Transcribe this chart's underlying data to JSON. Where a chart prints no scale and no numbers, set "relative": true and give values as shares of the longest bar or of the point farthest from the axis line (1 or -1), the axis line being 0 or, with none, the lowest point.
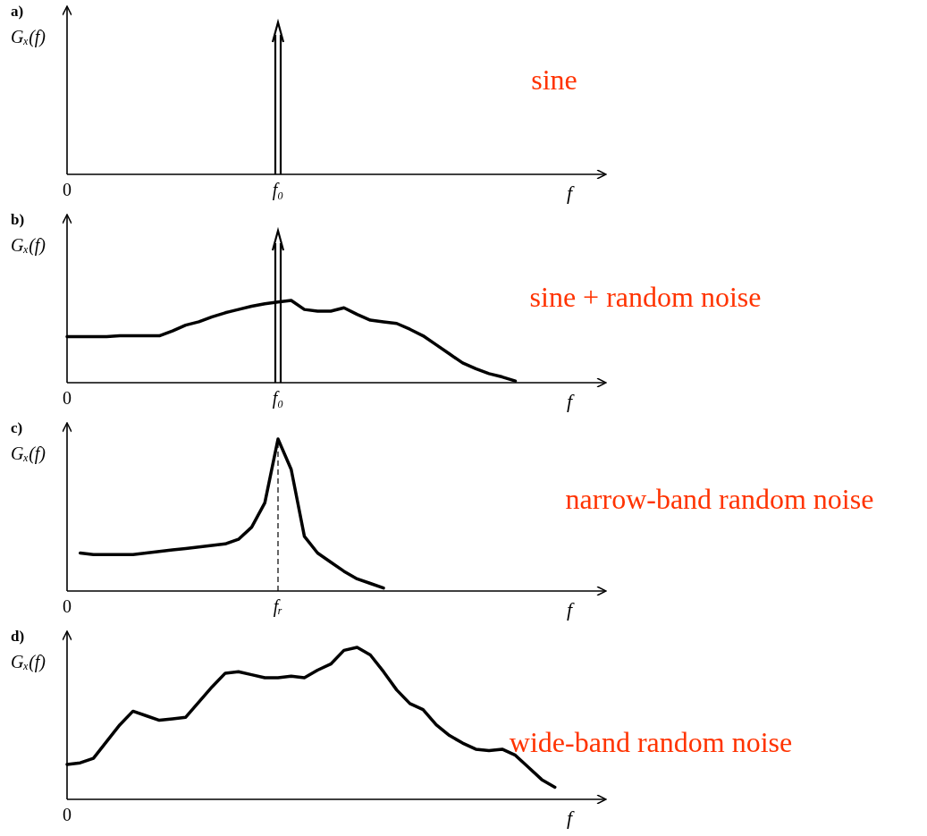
{
  "chart_data": [
    {
      "type": "other",
      "title": "a)",
      "ylabel": "Gₓ(f)",
      "xlabel": "f",
      "annotations": [
        "0",
        "f₀",
        "sine"
      ]
    },
    {
      "type": "line",
      "title": "b)",
      "ylabel": "Gₓ(f)",
      "xlabel": "f",
      "relative": true,
      "annotations": [
        "0",
        "f₀",
        "sine + random noise"
      ],
      "categories": [
        null,
        null,
        null,
        null,
        null,
        null,
        null,
        null,
        null,
        null,
        null,
        null,
        null,
        null,
        null,
        null,
        null,
        null,
        null,
        null,
        null,
        null,
        null,
        null,
        null,
        null,
        null,
        null,
        null,
        null,
        null,
        null,
        null,
        null,
        null,
        null,
        null,
        null,
        null,
        null,
        null
      ],
      "series": [
        {
          "color": "#000000",
          "values": [
            0.56,
            0.56,
            0.56,
            0.56,
            0.57,
            0.57,
            0.57,
            0.57,
            0.63,
            0.7,
            0.74,
            0.8,
            0.85,
            0.89,
            0.93,
            0.96,
            0.98,
            1,
            0.89,
            0.87,
            0.87,
            0.91,
            0.83,
            0.76,
            0.74,
            0.72,
            0.65,
            0.57,
            0.46,
            0.35,
            0.24,
            0.17,
            0.11,
            0.07,
            0.02,
            null,
            null,
            null,
            null,
            null,
            null
          ]
        }
      ]
    },
    {
      "type": "line",
      "title": "c)",
      "ylabel": "Gₓ(f)",
      "xlabel": "f",
      "relative": true,
      "annotations": [
        "0",
        "fᵣ",
        "narrow-band random noise"
      ],
      "categories": [
        null,
        null,
        null,
        null,
        null,
        null,
        null,
        null,
        null,
        null,
        null,
        null,
        null,
        null,
        null,
        null,
        null,
        null,
        null,
        null,
        null,
        null,
        null,
        null,
        null,
        null,
        null,
        null,
        null,
        null,
        null,
        null,
        null,
        null,
        null,
        null,
        null,
        null,
        null,
        null,
        null
      ],
      "series": [
        {
          "color": "#000000",
          "values": [
            null,
            0.25,
            0.24,
            0.24,
            0.24,
            0.24,
            0.25,
            0.26,
            0.27,
            0.28,
            0.29,
            0.3,
            0.31,
            0.34,
            0.42,
            0.58,
            1,
            0.8,
            0.36,
            0.25,
            0.19,
            0.13,
            0.08,
            0.05,
            0.02,
            null,
            null,
            null,
            null,
            null,
            null,
            null,
            null,
            null,
            null,
            null,
            null,
            null,
            null,
            null,
            null
          ]
        }
      ]
    },
    {
      "type": "line",
      "title": "d)",
      "ylabel": "Gₓ(f)",
      "xlabel": "f",
      "relative": true,
      "annotations": [
        "0",
        "wide-band random noise"
      ],
      "categories": [
        null,
        null,
        null,
        null,
        null,
        null,
        null,
        null,
        null,
        null,
        null,
        null,
        null,
        null,
        null,
        null,
        null,
        null,
        null,
        null,
        null,
        null,
        null,
        null,
        null,
        null,
        null,
        null,
        null,
        null,
        null,
        null,
        null,
        null,
        null,
        null,
        null,
        null,
        null,
        null,
        null
      ],
      "series": [
        {
          "color": "#000000",
          "values": [
            0.23,
            0.24,
            0.27,
            0.38,
            0.49,
            0.58,
            0.55,
            0.52,
            0.53,
            0.54,
            0.64,
            0.74,
            0.83,
            0.84,
            0.82,
            0.8,
            0.8,
            0.81,
            0.8,
            0.85,
            0.89,
            0.98,
            1,
            0.95,
            0.84,
            0.72,
            0.63,
            0.59,
            0.49,
            0.42,
            0.37,
            0.33,
            0.32,
            0.33,
            0.29,
            0.21,
            0.13,
            0.08,
            null,
            null,
            null
          ]
        }
      ]
    }
  ]
}
